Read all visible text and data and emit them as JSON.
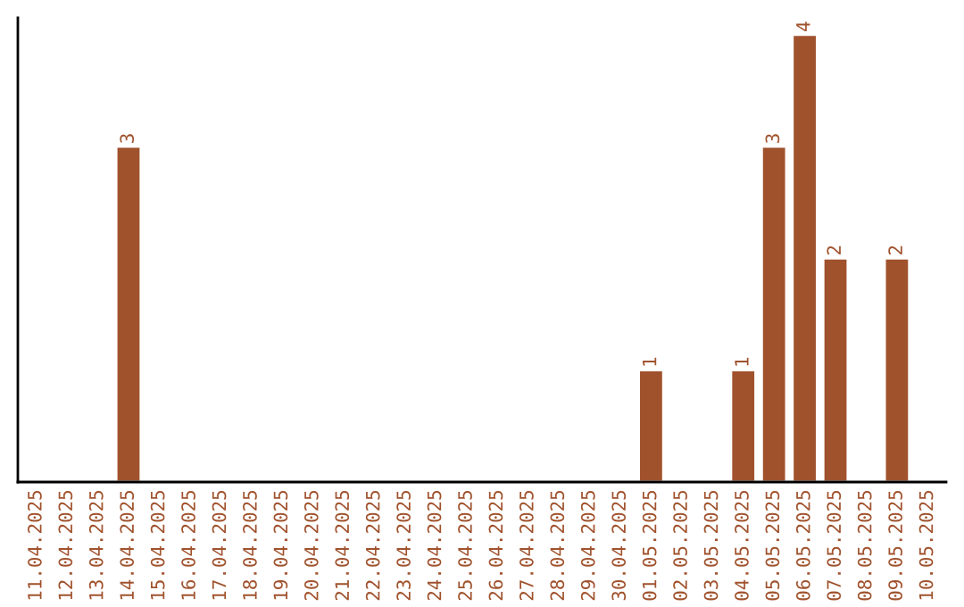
{
  "chart_data": {
    "type": "bar",
    "categories": [
      "11.04.2025",
      "12.04.2025",
      "13.04.2025",
      "14.04.2025",
      "15.04.2025",
      "16.04.2025",
      "17.04.2025",
      "18.04.2025",
      "19.04.2025",
      "20.04.2025",
      "21.04.2025",
      "22.04.2025",
      "23.04.2025",
      "24.04.2025",
      "25.04.2025",
      "26.04.2025",
      "27.04.2025",
      "28.04.2025",
      "29.04.2025",
      "30.04.2025",
      "01.05.2025",
      "02.05.2025",
      "03.05.2025",
      "04.05.2025",
      "05.05.2025",
      "06.05.2025",
      "07.05.2025",
      "08.05.2025",
      "09.05.2025",
      "10.05.2025"
    ],
    "values": [
      null,
      null,
      null,
      3,
      null,
      null,
      null,
      null,
      null,
      null,
      null,
      null,
      null,
      null,
      null,
      null,
      null,
      null,
      null,
      null,
      1,
      null,
      null,
      1,
      3,
      4,
      2,
      null,
      2,
      null
    ],
    "data_labels": true,
    "color": "#a0522d",
    "ylim": [
      0,
      4.15
    ],
    "tick_labels": "x",
    "grid": false,
    "legend": false
  }
}
